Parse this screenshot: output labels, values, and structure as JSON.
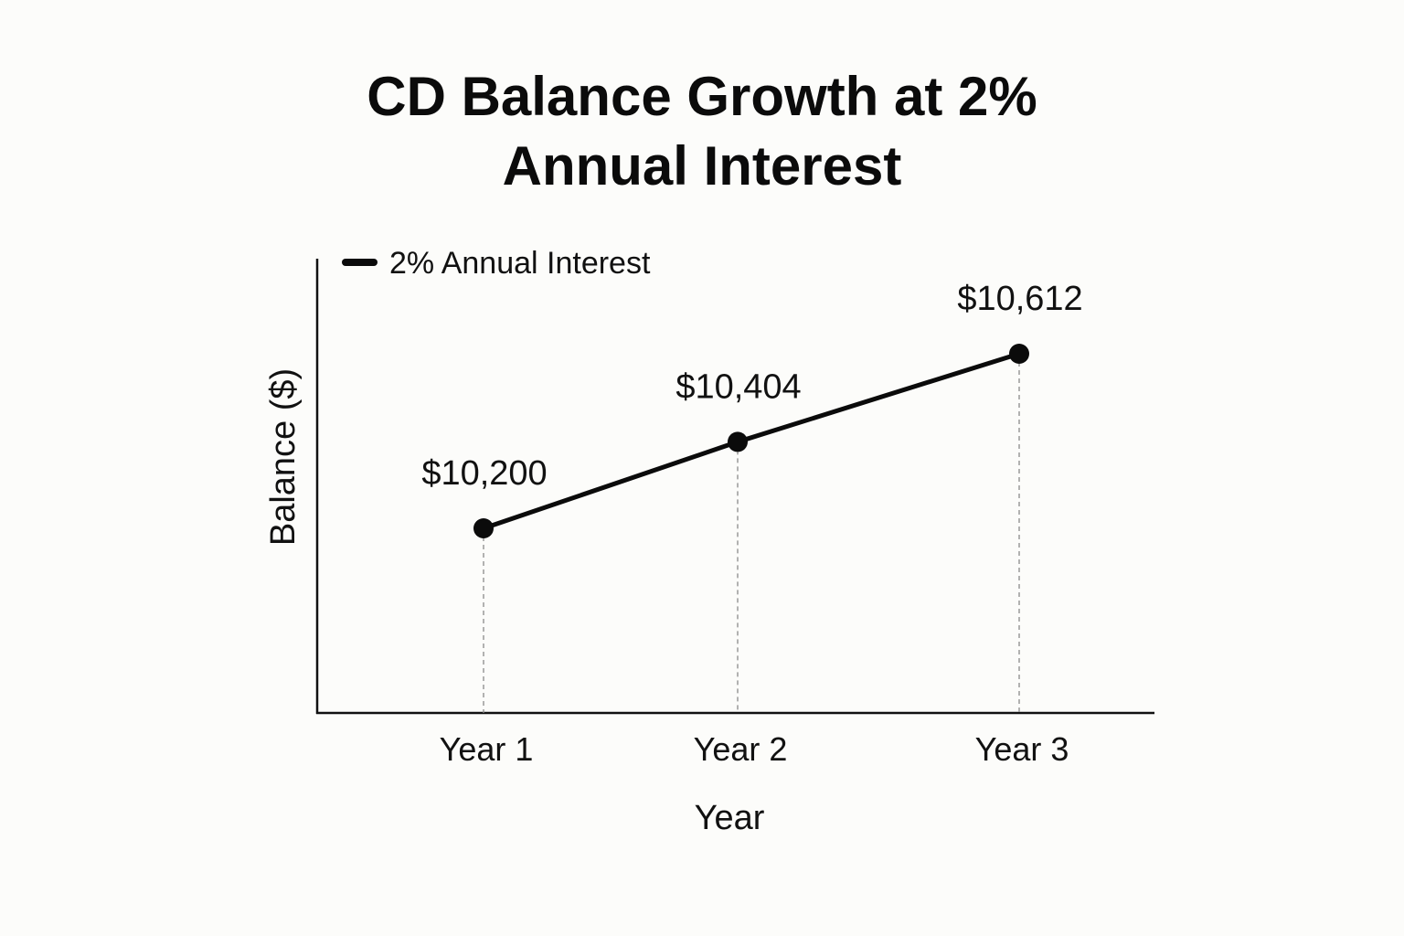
{
  "chart_data": {
    "type": "line",
    "title_lines": [
      "CD Balance Growth at 2%",
      "Annual Interest"
    ],
    "categories": [
      "Year 1",
      "Year 2",
      "Year 3"
    ],
    "series": [
      {
        "name": "2% Annual Interest",
        "values": [
          10200,
          10404,
          10612
        ],
        "data_labels": [
          "$10,200",
          "$10,404",
          "$10,612"
        ]
      }
    ],
    "xlabel": "Year",
    "ylabel": "Balance ($)",
    "legend_position": "top-left",
    "grid": false,
    "guides": "dashed vertical lines from each point to the x-axis",
    "colors": {
      "line": "#0b0b0b",
      "guide": "#8a8a8a",
      "background": "#fcfcfa"
    }
  }
}
